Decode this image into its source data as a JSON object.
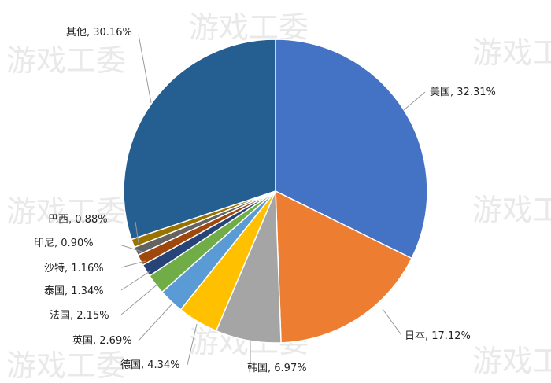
{
  "watermark": "游戏工委",
  "chart_data": {
    "type": "pie",
    "slices": [
      {
        "label": "美国",
        "value": 32.31,
        "display": "美国, 32.31%",
        "color": "#4472C4"
      },
      {
        "label": "日本",
        "value": 17.12,
        "display": "日本, 17.12%",
        "color": "#ED7D31"
      },
      {
        "label": "韩国",
        "value": 6.97,
        "display": "韩国, 6.97%",
        "color": "#A5A5A5"
      },
      {
        "label": "德国",
        "value": 4.34,
        "display": "德国, 4.34%",
        "color": "#FFC000"
      },
      {
        "label": "英国",
        "value": 2.69,
        "display": "英国, 2.69%",
        "color": "#5B9BD5"
      },
      {
        "label": "法国",
        "value": 2.15,
        "display": "法国, 2.15%",
        "color": "#70AD47"
      },
      {
        "label": "泰国",
        "value": 1.34,
        "display": "泰国, 1.34%",
        "color": "#264478"
      },
      {
        "label": "沙特",
        "value": 1.16,
        "display": "沙特, 1.16%",
        "color": "#9E480E"
      },
      {
        "label": "印尼",
        "value": 0.9,
        "display": "印尼, 0.90%",
        "color": "#636363"
      },
      {
        "label": "巴西",
        "value": 0.88,
        "display": "巴西, 0.88%",
        "color": "#997300"
      },
      {
        "label": "其他",
        "value": 30.16,
        "display": "其他, 30.16%",
        "color": "#255E91"
      }
    ],
    "legend": "none",
    "data_labels": "outside with leader lines"
  }
}
